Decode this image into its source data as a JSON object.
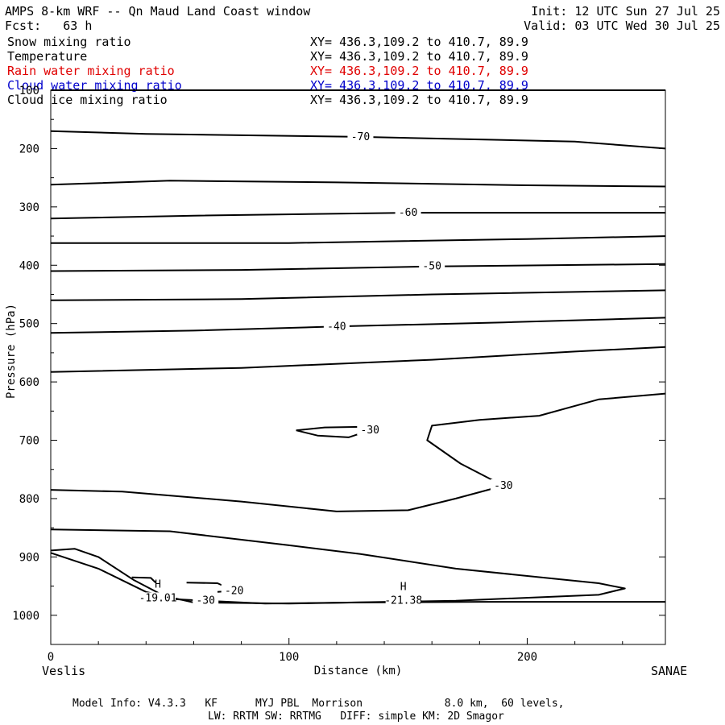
{
  "header": {
    "title": "AMPS 8-km WRF -- Qn Maud Land Coast window",
    "fcst": "Fcst:   63 h",
    "init": "Init: 12 UTC Sun 27 Jul 25",
    "valid": "Valid: 03 UTC Wed 30 Jul 25"
  },
  "fields": [
    {
      "name": "Snow mixing ratio",
      "xy": "XY= 436.3,109.2 to 410.7, 89.9",
      "color": "#000000"
    },
    {
      "name": "Temperature",
      "xy": "XY= 436.3,109.2 to 410.7, 89.9",
      "color": "#000000"
    },
    {
      "name": "Rain water mixing ratio",
      "xy": "XY= 436.3,109.2 to 410.7, 89.9",
      "color": "#e00000"
    },
    {
      "name": "Cloud water mixing ratio",
      "xy": "XY= 436.3,109.2 to 410.7, 89.9",
      "color": "#0000cc"
    },
    {
      "name": "Cloud ice mixing ratio",
      "xy": "XY= 436.3,109.2 to 410.7, 89.9",
      "color": "#000000"
    }
  ],
  "footer": {
    "line1": "Model Info: V4.3.3   KF      MYJ PBL  Morrison             8.0 km,  60 levels,",
    "line2": "LW: RRTM SW: RRTMG   DIFF: simple KM: 2D Smagor"
  },
  "endpoints": {
    "left": "Veslis",
    "right": "SANAE"
  },
  "chart_data": {
    "type": "line",
    "subtype": "cross-section contour",
    "xlabel": "Distance (km)",
    "ylabel": "Pressure (hPa)",
    "xlim": [
      0,
      258
    ],
    "ylim": [
      1050,
      100
    ],
    "xticks": [
      "0",
      "100",
      "200"
    ],
    "yticks": [
      "100",
      "200",
      "300",
      "400",
      "500",
      "600",
      "700",
      "800",
      "900",
      "1000"
    ],
    "contours": [
      {
        "level": "",
        "points": [
          [
            0,
            100
          ],
          [
            258,
            100
          ]
        ]
      },
      {
        "level": "-70",
        "points": [
          [
            0,
            170
          ],
          [
            40,
            175
          ],
          [
            130,
            180
          ],
          [
            220,
            188
          ],
          [
            258,
            200
          ]
        ]
      },
      {
        "level": "",
        "points": [
          [
            0,
            262
          ],
          [
            50,
            255
          ],
          [
            120,
            258
          ],
          [
            200,
            263
          ],
          [
            258,
            265
          ]
        ]
      },
      {
        "level": "-60",
        "points": [
          [
            0,
            320
          ],
          [
            60,
            315
          ],
          [
            150,
            310
          ],
          [
            258,
            310
          ]
        ]
      },
      {
        "level": "",
        "points": [
          [
            0,
            362
          ],
          [
            100,
            362
          ],
          [
            200,
            355
          ],
          [
            258,
            350
          ]
        ]
      },
      {
        "level": "-50",
        "points": [
          [
            0,
            410
          ],
          [
            80,
            408
          ],
          [
            160,
            402
          ],
          [
            258,
            398
          ]
        ]
      },
      {
        "level": "",
        "points": [
          [
            0,
            460
          ],
          [
            80,
            458
          ],
          [
            160,
            450
          ],
          [
            258,
            443
          ]
        ]
      },
      {
        "level": "-40",
        "points": [
          [
            0,
            516
          ],
          [
            60,
            512
          ],
          [
            120,
            505
          ],
          [
            190,
            498
          ],
          [
            258,
            490
          ]
        ]
      },
      {
        "level": "",
        "points": [
          [
            0,
            583
          ],
          [
            80,
            576
          ],
          [
            160,
            562
          ],
          [
            220,
            548
          ],
          [
            258,
            540
          ]
        ]
      },
      {
        "level": "-30",
        "points": [
          [
            258,
            620
          ],
          [
            230,
            630
          ],
          [
            205,
            658
          ],
          [
            180,
            665
          ],
          [
            160,
            675
          ],
          [
            158,
            700
          ],
          [
            172,
            740
          ],
          [
            190,
            778
          ],
          [
            170,
            800
          ],
          [
            150,
            820
          ],
          [
            120,
            822
          ],
          [
            80,
            805
          ],
          [
            30,
            788
          ],
          [
            0,
            785
          ]
        ]
      },
      {
        "level": "-30",
        "points": [
          [
            103,
            683
          ],
          [
            115,
            678
          ],
          [
            130,
            677
          ],
          [
            134,
            683
          ],
          [
            125,
            695
          ],
          [
            112,
            692
          ],
          [
            103,
            683
          ]
        ]
      },
      {
        "level": "",
        "points": [
          [
            0,
            853
          ],
          [
            50,
            856
          ],
          [
            100,
            880
          ],
          [
            130,
            895
          ],
          [
            170,
            920
          ],
          [
            230,
            945
          ],
          [
            241,
            954
          ],
          [
            230,
            965
          ],
          [
            170,
            975
          ],
          [
            100,
            980
          ],
          [
            60,
            978
          ],
          [
            40,
            960
          ],
          [
            20,
            920
          ],
          [
            0,
            893
          ]
        ]
      },
      {
        "level": "-30",
        "points": [
          [
            0,
            889
          ],
          [
            10,
            886
          ],
          [
            20,
            900
          ],
          [
            35,
            940
          ],
          [
            50,
            972
          ],
          [
            65,
            975
          ],
          [
            90,
            980
          ],
          [
            130,
            978
          ],
          [
            180,
            977
          ],
          [
            258,
            977
          ]
        ]
      },
      {
        "level": "-20",
        "points": [
          [
            57,
            944
          ],
          [
            70,
            945
          ],
          [
            77,
            958
          ],
          [
            70,
            960
          ]
        ]
      },
      {
        "level": "",
        "points": [
          [
            34,
            935
          ],
          [
            42,
            936
          ],
          [
            44,
            944
          ]
        ]
      }
    ],
    "lows_highs": [
      {
        "label": "H",
        "value": "-19.01",
        "x": 45,
        "p": 958
      },
      {
        "label": "H",
        "value": "-21.38",
        "x": 148,
        "p": 962
      }
    ]
  }
}
